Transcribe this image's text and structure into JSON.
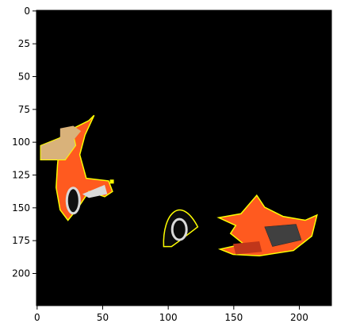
{
  "figure": {
    "image_extent": {
      "x": [
        0,
        224
      ],
      "y": [
        0,
        224
      ]
    },
    "x_ticks": [
      {
        "value": 0,
        "label": "0"
      },
      {
        "value": 50,
        "label": "50"
      },
      {
        "value": 100,
        "label": "100"
      },
      {
        "value": 150,
        "label": "150"
      },
      {
        "value": 200,
        "label": "200"
      }
    ],
    "y_ticks": [
      {
        "value": 0,
        "label": "0"
      },
      {
        "value": 25,
        "label": "25"
      },
      {
        "value": 50,
        "label": "50"
      },
      {
        "value": 75,
        "label": "75"
      },
      {
        "value": 100,
        "label": "100"
      },
      {
        "value": 125,
        "label": "125"
      },
      {
        "value": 150,
        "label": "150"
      },
      {
        "value": 175,
        "label": "175"
      },
      {
        "value": 200,
        "label": "200"
      }
    ],
    "colors": {
      "background": "#000000",
      "outline": "#ffff00",
      "car_body": "#ff5a1f",
      "car_body_dark": "#c0361a",
      "tire": "#d9d9d9",
      "grille": "#404040",
      "tan": "#d9b27a"
    }
  }
}
